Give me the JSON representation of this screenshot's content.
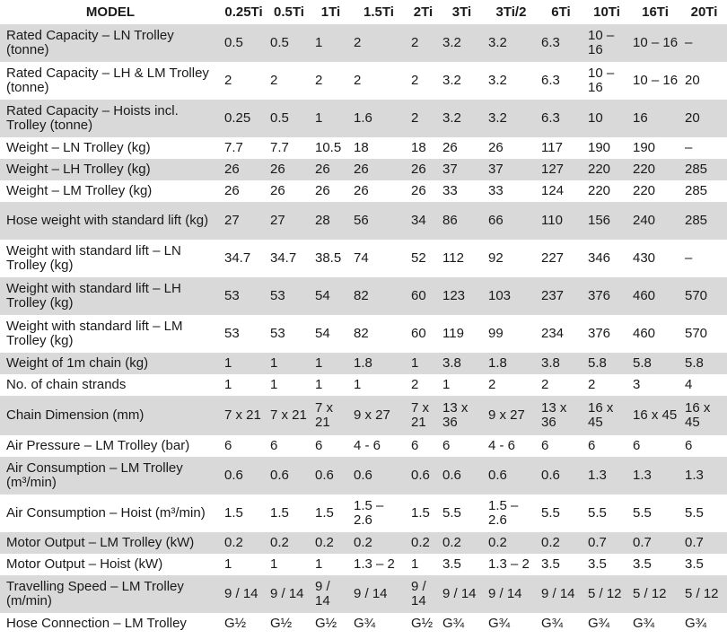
{
  "table": {
    "model_header": "MODEL",
    "columns": [
      "0.25Ti",
      "0.5Ti",
      "1Ti",
      "1.5Ti",
      "2Ti",
      "3Ti",
      "3Ti/2",
      "6Ti",
      "10Ti",
      "16Ti",
      "20Ti"
    ],
    "rows": [
      {
        "label": "Rated Capacity – LN Trolley (tonne)",
        "values": [
          "0.5",
          "0.5",
          "1",
          "2",
          "2",
          "3.2",
          "3.2",
          "6.3",
          "10 – 16",
          "10 – 16",
          "–"
        ]
      },
      {
        "label": "Rated Capacity – LH & LM Trolley (tonne)",
        "values": [
          "2",
          "2",
          "2",
          "2",
          "2",
          "3.2",
          "3.2",
          "6.3",
          "10 – 16",
          "10 – 16",
          "20"
        ]
      },
      {
        "label": "Rated Capacity – Hoists incl. Trolley (tonne)",
        "values": [
          "0.25",
          "0.5",
          "1",
          "1.6",
          "2",
          "3.2",
          "3.2",
          "6.3",
          "10",
          "16",
          "20"
        ]
      },
      {
        "label": "Weight – LN Trolley (kg)",
        "values": [
          "7.7",
          "7.7",
          "10.5",
          "18",
          "18",
          "26",
          "26",
          "117",
          "190",
          "190",
          "–"
        ]
      },
      {
        "label": "Weight – LH Trolley (kg)",
        "values": [
          "26",
          "26",
          "26",
          "26",
          "26",
          "37",
          "37",
          "127",
          "220",
          "220",
          "285"
        ]
      },
      {
        "label": "Weight – LM Trolley (kg)",
        "values": [
          "26",
          "26",
          "26",
          "26",
          "26",
          "33",
          "33",
          "124",
          "220",
          "220",
          "285"
        ]
      },
      {
        "label": "Hose weight with standard lift (kg)",
        "values": [
          "27",
          "27",
          "28",
          "56",
          "34",
          "86",
          "66",
          "110",
          "156",
          "240",
          "285"
        ]
      },
      {
        "label": "Weight with standard lift – LN Trolley (kg)",
        "values": [
          "34.7",
          "34.7",
          "38.5",
          "74",
          "52",
          "112",
          "92",
          "227",
          "346",
          "430",
          "–"
        ]
      },
      {
        "label": "Weight with standard lift – LH Trolley (kg)",
        "values": [
          "53",
          "53",
          "54",
          "82",
          "60",
          "123",
          "103",
          "237",
          "376",
          "460",
          "570"
        ]
      },
      {
        "label": "Weight with standard lift – LM Trolley (kg)",
        "values": [
          "53",
          "53",
          "54",
          "82",
          "60",
          "119",
          "99",
          "234",
          "376",
          "460",
          "570"
        ]
      },
      {
        "label": "Weight of 1m chain (kg)",
        "values": [
          "1",
          "1",
          "1",
          "1.8",
          "1",
          "3.8",
          "1.8",
          "3.8",
          "5.8",
          "5.8",
          "5.8"
        ]
      },
      {
        "label": "No. of chain strands",
        "values": [
          "1",
          "1",
          "1",
          "1",
          "2",
          "1",
          "2",
          "2",
          "2",
          "3",
          "4"
        ]
      },
      {
        "label": "Chain Dimension (mm)",
        "values": [
          "7 x 21",
          "7 x 21",
          "7 x 21",
          "9 x 27",
          "7 x 21",
          "13 x 36",
          "9 x 27",
          "13 x 36",
          "16 x 45",
          "16 x 45",
          "16 x 45"
        ]
      },
      {
        "label": "Air Pressure – LM Trolley (bar)",
        "values": [
          "6",
          "6",
          "6",
          "4 - 6",
          "6",
          "6",
          "4 - 6",
          "6",
          "6",
          "6",
          "6"
        ]
      },
      {
        "label": "Air Consumption – LM Trolley (m³/min)",
        "values": [
          "0.6",
          "0.6",
          "0.6",
          "0.6",
          "0.6",
          "0.6",
          "0.6",
          "0.6",
          "1.3",
          "1.3",
          "1.3"
        ]
      },
      {
        "label": "Air Consumption – Hoist (m³/min)",
        "values": [
          "1.5",
          "1.5",
          "1.5",
          "1.5 – 2.6",
          "1.5",
          "5.5",
          "1.5 – 2.6",
          "5.5",
          "5.5",
          "5.5",
          "5.5"
        ]
      },
      {
        "label": "Motor Output – LM Trolley (kW)",
        "values": [
          "0.2",
          "0.2",
          "0.2",
          "0.2",
          "0.2",
          "0.2",
          "0.2",
          "0.2",
          "0.7",
          "0.7",
          "0.7"
        ]
      },
      {
        "label": "Motor Output – Hoist (kW)",
        "values": [
          "1",
          "1",
          "1",
          "1.3 – 2",
          "1",
          "3.5",
          "1.3 – 2",
          "3.5",
          "3.5",
          "3.5",
          "3.5"
        ]
      },
      {
        "label": "Travelling Speed – LM Trolley (m/min)",
        "values": [
          "9 / 14",
          "9 / 14",
          "9 / 14",
          "9 / 14",
          "9 / 14",
          "9 / 14",
          "9 / 14",
          "9 / 14",
          "5 / 12",
          "5 / 12",
          "5 / 12"
        ]
      },
      {
        "label": "Hose Connection – LM Trolley",
        "values": [
          "G½",
          "G½",
          "G½",
          "G¾",
          "G½",
          "G¾",
          "G¾",
          "G¾",
          "G¾",
          "G¾",
          "G¾"
        ]
      }
    ]
  }
}
